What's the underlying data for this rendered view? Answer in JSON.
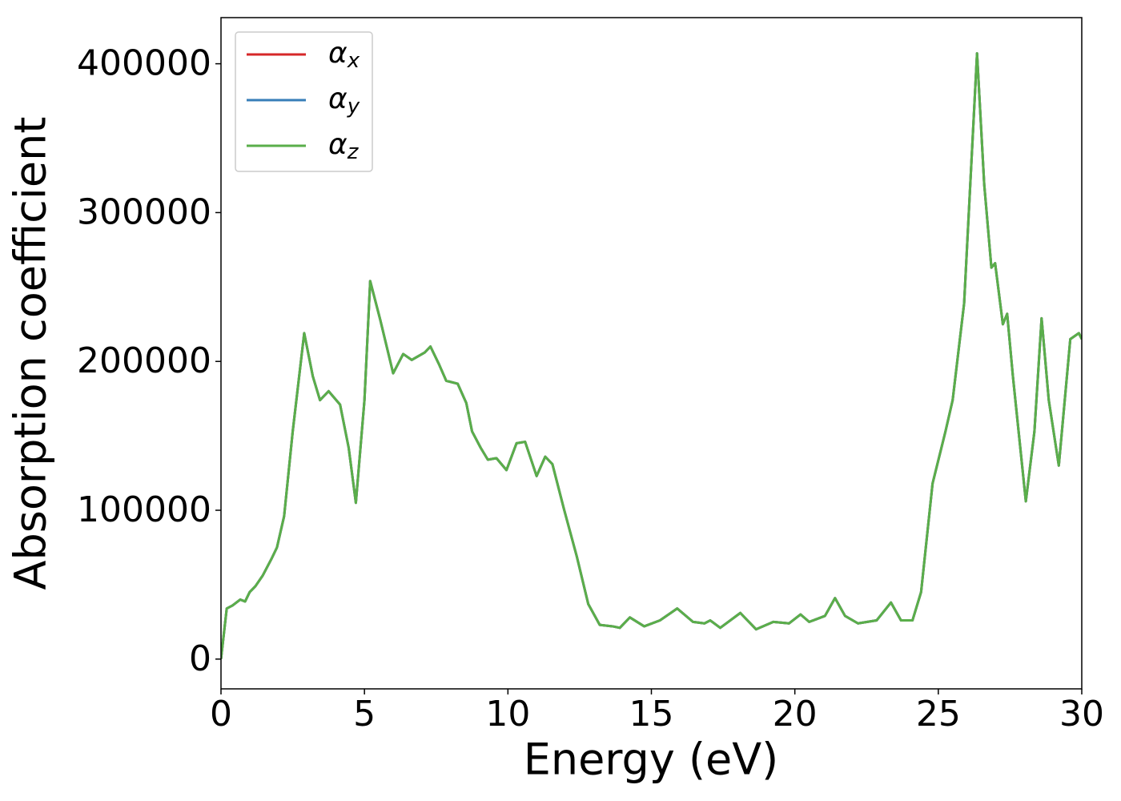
{
  "chart_data": {
    "type": "line",
    "xlabel": "Energy (eV)",
    "ylabel": "Absorption coefficient",
    "xlim": [
      0,
      30
    ],
    "ylim": [
      -20000,
      431000
    ],
    "xticks": [
      0,
      5,
      10,
      15,
      20,
      25,
      30
    ],
    "yticks": [
      0,
      100000,
      200000,
      300000,
      400000
    ],
    "legend": "upper left",
    "grid": false,
    "x": [
      0,
      0.2,
      0.4,
      0.67,
      0.84,
      1.0,
      1.2,
      1.45,
      1.75,
      1.95,
      2.2,
      2.5,
      2.9,
      3.2,
      3.45,
      3.75,
      4.15,
      4.45,
      4.7,
      5.0,
      5.2,
      5.55,
      6.0,
      6.35,
      6.65,
      7.1,
      7.3,
      7.6,
      7.85,
      8.25,
      8.55,
      8.75,
      9.05,
      9.3,
      9.6,
      9.95,
      10.3,
      10.6,
      11.0,
      11.3,
      11.55,
      11.95,
      12.4,
      12.8,
      13.2,
      13.65,
      13.9,
      14.25,
      14.75,
      15.3,
      15.9,
      16.45,
      16.85,
      17.05,
      17.4,
      18.1,
      18.65,
      19.25,
      19.8,
      20.2,
      20.5,
      21.05,
      21.4,
      21.75,
      22.2,
      22.85,
      23.35,
      23.7,
      24.1,
      24.4,
      24.8,
      25.25,
      25.5,
      25.9,
      26.35,
      26.6,
      26.85,
      26.98,
      27.25,
      27.4,
      27.6,
      28.05,
      28.35,
      28.6,
      28.85,
      29.2,
      29.6,
      29.9,
      30.0
    ],
    "series": [
      {
        "name": "αx",
        "color": "#d62728",
        "values": [
          0,
          34000,
          36000,
          40000,
          38700,
          45000,
          49000,
          56000,
          67000,
          75000,
          96000,
          153000,
          219000,
          190000,
          174000,
          180000,
          171000,
          142000,
          105000,
          174000,
          254000,
          228000,
          192000,
          205000,
          201000,
          206000,
          210000,
          198000,
          187000,
          185000,
          172000,
          153000,
          142000,
          134000,
          135000,
          127000,
          145000,
          146000,
          123000,
          136000,
          131000,
          101000,
          69000,
          37000,
          23000,
          22000,
          21000,
          28000,
          22000,
          26000,
          34000,
          25000,
          24000,
          26000,
          21000,
          31000,
          20000,
          25000,
          24000,
          30000,
          25000,
          29000,
          41000,
          29000,
          24000,
          26000,
          38000,
          26000,
          26000,
          45000,
          118000,
          153000,
          174000,
          239000,
          407000,
          319000,
          263000,
          266000,
          225000,
          232000,
          190000,
          106000,
          153000,
          229000,
          174000,
          130000,
          215000,
          219000,
          215000
        ]
      },
      {
        "name": "αy",
        "color": "#377eb8",
        "values": [
          0,
          34000,
          36000,
          40000,
          38700,
          45000,
          49000,
          56000,
          67000,
          75000,
          96000,
          153000,
          219000,
          190000,
          174000,
          180000,
          171000,
          142000,
          105000,
          174000,
          254000,
          228000,
          192000,
          205000,
          201000,
          206000,
          210000,
          198000,
          187000,
          185000,
          172000,
          153000,
          142000,
          134000,
          135000,
          127000,
          145000,
          146000,
          123000,
          136000,
          131000,
          101000,
          69000,
          37000,
          23000,
          22000,
          21000,
          28000,
          22000,
          26000,
          34000,
          25000,
          24000,
          26000,
          21000,
          31000,
          20000,
          25000,
          24000,
          30000,
          25000,
          29000,
          41000,
          29000,
          24000,
          26000,
          38000,
          26000,
          26000,
          45000,
          118000,
          153000,
          174000,
          239000,
          407000,
          319000,
          263000,
          266000,
          225000,
          232000,
          190000,
          106000,
          153000,
          229000,
          174000,
          130000,
          215000,
          219000,
          215000
        ]
      },
      {
        "name": "αz",
        "color": "#5aae4a",
        "values": [
          0,
          34000,
          36000,
          40000,
          38700,
          45000,
          49000,
          56000,
          67000,
          75000,
          96000,
          153000,
          219000,
          190000,
          174000,
          180000,
          171000,
          142000,
          105000,
          174000,
          254000,
          228000,
          192000,
          205000,
          201000,
          206000,
          210000,
          198000,
          187000,
          185000,
          172000,
          153000,
          142000,
          134000,
          135000,
          127000,
          145000,
          146000,
          123000,
          136000,
          131000,
          101000,
          69000,
          37000,
          23000,
          22000,
          21000,
          28000,
          22000,
          26000,
          34000,
          25000,
          24000,
          26000,
          21000,
          31000,
          20000,
          25000,
          24000,
          30000,
          25000,
          29000,
          41000,
          29000,
          24000,
          26000,
          38000,
          26000,
          26000,
          45000,
          118000,
          153000,
          174000,
          239000,
          407000,
          319000,
          263000,
          266000,
          225000,
          232000,
          190000,
          106000,
          153000,
          229000,
          174000,
          130000,
          215000,
          219000,
          215000
        ]
      }
    ]
  }
}
